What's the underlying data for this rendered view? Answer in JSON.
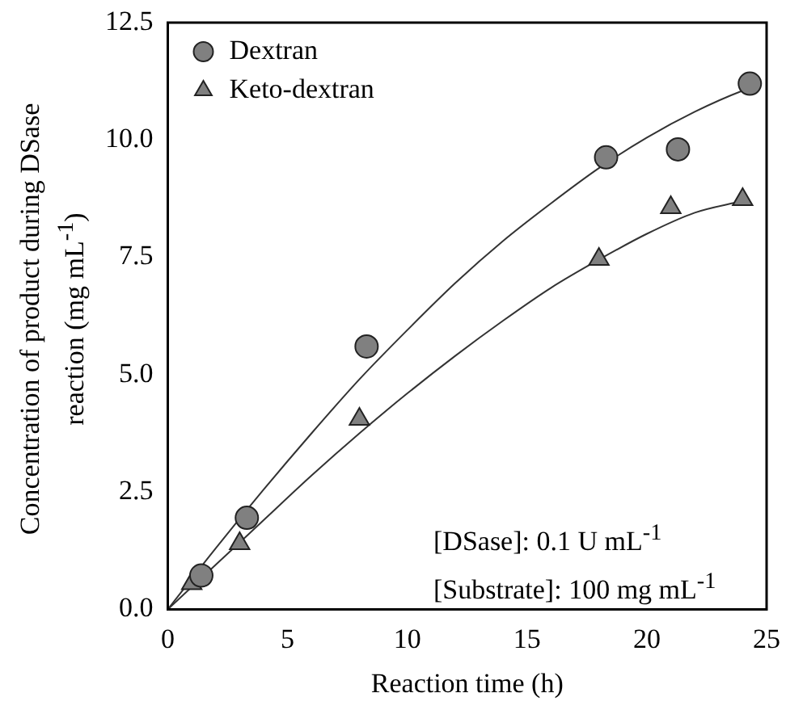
{
  "chart_data": {
    "type": "scatter",
    "xlabel": "Reaction time (h)",
    "ylabel": "Concentration of product during DSase reaction (mg mL$^{-1}$)",
    "xlim": [
      0,
      25
    ],
    "xticks": [
      0,
      5,
      10,
      15,
      20,
      25
    ],
    "ylim": [
      0,
      12.5
    ],
    "yticks": [
      {
        "value": 0,
        "label": "0.0"
      },
      2.5,
      {
        "value": 5,
        "label": "5.0"
      },
      7.5,
      {
        "value": 10,
        "label": "10.0"
      },
      12.5
    ],
    "grid": false,
    "legend": "top left",
    "annotations": [
      "[DSase]: 0.1 U mL$^{-1}$",
      "[Substrate]: 100 mg mL$^{-1}$"
    ],
    "series": [
      {
        "name": "Dextran",
        "type": "scatter",
        "marker": "circle",
        "color": "#808080",
        "x": [
          1.4,
          3.3,
          8.3,
          18.3,
          21.3,
          24.3
        ],
        "values": [
          0.72,
          1.95,
          5.6,
          9.63,
          9.8,
          11.2
        ]
      },
      {
        "name": "Keto-dextran",
        "type": "scatter",
        "marker": "triangle",
        "color": "#808080",
        "x": [
          1.0,
          3.0,
          8.0,
          18.0,
          21.0,
          24.0
        ],
        "values": [
          0.55,
          1.4,
          4.05,
          7.46,
          8.56,
          8.73
        ]
      },
      {
        "type": "line",
        "marker": "none",
        "color": "#333333",
        "x": [
          0,
          2,
          4,
          6,
          8,
          10,
          12,
          14,
          16,
          18,
          20,
          22,
          24,
          24.3
        ],
        "values": [
          0,
          1.3,
          2.55,
          3.75,
          4.9,
          5.95,
          6.95,
          7.85,
          8.65,
          9.4,
          10.05,
          10.6,
          11.05,
          11.1
        ]
      },
      {
        "type": "line",
        "marker": "none",
        "color": "#333333",
        "x": [
          0,
          2,
          4,
          6,
          8,
          10,
          12,
          14,
          16,
          18,
          20,
          22,
          24
        ],
        "values": [
          0,
          0.95,
          1.9,
          2.85,
          3.75,
          4.6,
          5.4,
          6.15,
          6.85,
          7.45,
          8.0,
          8.45,
          8.7
        ]
      }
    ]
  }
}
